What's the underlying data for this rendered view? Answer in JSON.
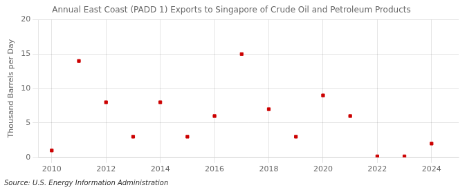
{
  "chart_data": {
    "type": "scatter",
    "title": "Annual East Coast (PADD 1) Exports to Singapore of Crude Oil and Petroleum Products",
    "ylabel": "Thousand Barrels per Day",
    "annotation": "Source: U.S. Energy Information Administration",
    "x": [
      2010,
      2011,
      2012,
      2013,
      2014,
      2015,
      2016,
      2017,
      2018,
      2019,
      2020,
      2021,
      2022,
      2023,
      2024
    ],
    "values": [
      1.0,
      14.0,
      8.0,
      3.0,
      8.0,
      3.0,
      6.0,
      15.0,
      7.0,
      3.0,
      9.0,
      6.0,
      0.15,
      0.15,
      2.0
    ],
    "color": "#cc0000",
    "marker": "square",
    "xlim": [
      2009.5,
      2025.0
    ],
    "xticks": [
      2010,
      2012,
      2014,
      2016,
      2018,
      2020,
      2022,
      2024
    ],
    "ylim": [
      0,
      20
    ],
    "yticks": [
      0,
      5,
      10,
      15,
      20
    ],
    "grid": true
  }
}
